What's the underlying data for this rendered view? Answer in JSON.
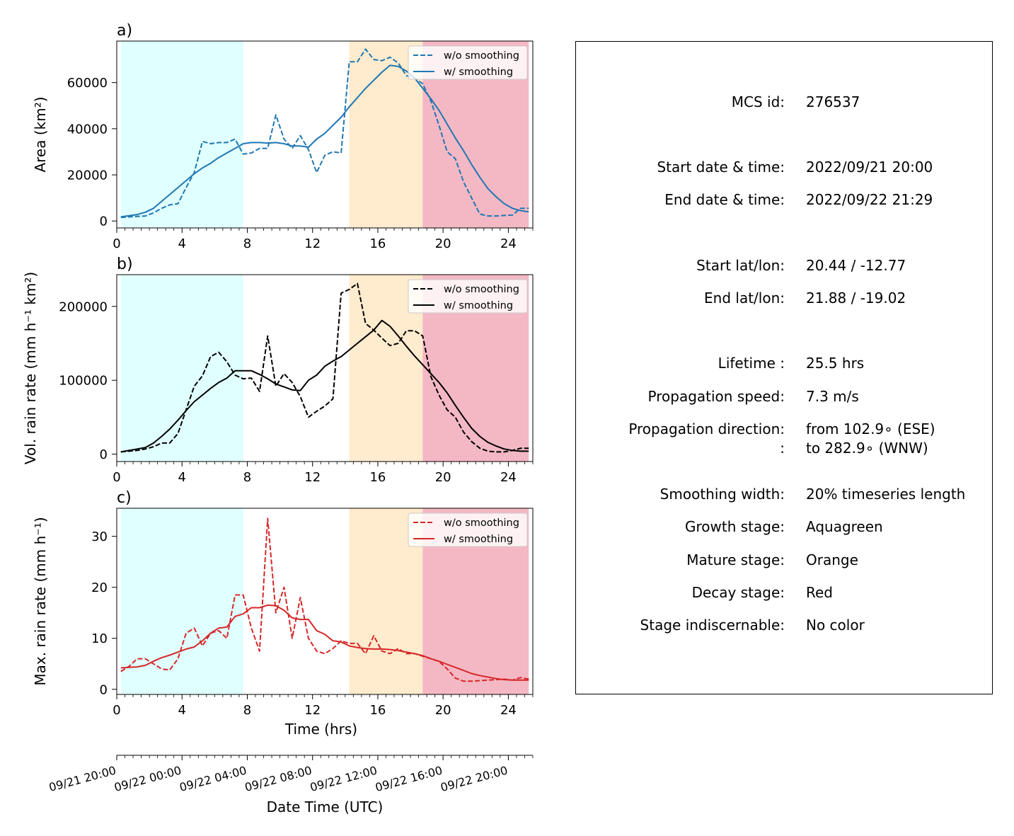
{
  "chart_data": [
    {
      "type": "line",
      "panel_label": "a)",
      "xlabel": "",
      "ylabel": "Area  (km²)",
      "xlim": [
        0,
        25.5
      ],
      "ylim": [
        -3000,
        78000
      ],
      "xticks": [
        0,
        4,
        8,
        12,
        16,
        20,
        24
      ],
      "yticks": [
        0,
        20000,
        40000,
        60000
      ],
      "yticklabels": [
        "0",
        "20000",
        "40000",
        "60000"
      ],
      "stages": [
        {
          "name": "Growth stage",
          "start": 0.25,
          "end": 7.75,
          "color": "#e0ffff"
        },
        {
          "name": "Mature stage",
          "start": 14.25,
          "end": 18.75,
          "color": "#ffebcd"
        },
        {
          "name": "Decay stage",
          "start": 18.75,
          "end": 25.25,
          "color": "#f4b8c4"
        }
      ],
      "legend": "top-right",
      "series": [
        {
          "name": "w/o smoothing",
          "style": "dashed",
          "color": "#1f77b4",
          "x": [
            0.25,
            0.75,
            1.25,
            1.75,
            2.25,
            2.75,
            3.25,
            3.75,
            4.25,
            4.75,
            5.25,
            5.75,
            6.25,
            6.75,
            7.25,
            7.75,
            8.25,
            8.75,
            9.25,
            9.75,
            10.25,
            10.75,
            11.25,
            11.75,
            12.25,
            12.75,
            13.25,
            13.75,
            14.25,
            14.75,
            15.25,
            15.75,
            16.25,
            16.75,
            17.25,
            17.75,
            18.25,
            18.75,
            19.25,
            19.75,
            20.25,
            20.75,
            21.25,
            21.75,
            22.25,
            22.75,
            23.25,
            23.75,
            24.25,
            24.75,
            25.25
          ],
          "y": [
            1500,
            1800,
            2000,
            2200,
            3500,
            5500,
            7000,
            7500,
            14500,
            21000,
            34500,
            33500,
            34000,
            34000,
            35500,
            29000,
            29500,
            31500,
            31500,
            46000,
            35500,
            31500,
            37000,
            31000,
            21000,
            28500,
            30000,
            29500,
            69000,
            69000,
            74500,
            70000,
            69500,
            71000,
            68500,
            63000,
            62000,
            59500,
            52000,
            41500,
            30000,
            27000,
            17000,
            10000,
            3000,
            2200,
            2200,
            2400,
            2600,
            5500,
            5500
          ]
        },
        {
          "name": "w/ smoothing",
          "style": "solid",
          "color": "#1f77b4",
          "x": [
            0.25,
            0.75,
            1.25,
            1.75,
            2.25,
            2.75,
            3.25,
            3.75,
            4.25,
            4.75,
            5.25,
            5.75,
            6.25,
            6.75,
            7.25,
            7.75,
            8.25,
            8.75,
            9.25,
            9.75,
            10.25,
            10.75,
            11.25,
            11.75,
            12.25,
            12.75,
            13.25,
            13.75,
            14.25,
            14.75,
            15.25,
            15.75,
            16.25,
            16.75,
            17.25,
            17.75,
            18.25,
            18.75,
            19.25,
            19.75,
            20.25,
            20.75,
            21.25,
            21.75,
            22.25,
            22.75,
            23.25,
            23.75,
            24.25,
            24.75,
            25.25
          ],
          "y": [
            1800,
            2300,
            2800,
            3800,
            5500,
            8500,
            11500,
            14500,
            17500,
            20500,
            23000,
            25000,
            27500,
            29500,
            31500,
            33500,
            34000,
            34000,
            33800,
            34000,
            33500,
            32500,
            32500,
            32000,
            35500,
            38000,
            41500,
            45000,
            49500,
            53500,
            57500,
            61000,
            64500,
            67500,
            67000,
            65000,
            62000,
            57500,
            53000,
            48000,
            42000,
            36000,
            30500,
            24500,
            19000,
            14000,
            10500,
            7500,
            5500,
            4500,
            4000
          ]
        }
      ]
    },
    {
      "type": "line",
      "panel_label": "b)",
      "xlabel": "",
      "ylabel": "Vol. rain rate (mm h⁻¹ km²)",
      "xlim": [
        0,
        25.5
      ],
      "ylim": [
        -10000,
        243000
      ],
      "xticks": [
        0,
        4,
        8,
        12,
        16,
        20,
        24
      ],
      "yticks": [
        0,
        100000,
        200000
      ],
      "yticklabels": [
        "0",
        "100000",
        "200000"
      ],
      "stages": [
        {
          "name": "Growth stage",
          "start": 0.25,
          "end": 7.75,
          "color": "#e0ffff"
        },
        {
          "name": "Mature stage",
          "start": 14.25,
          "end": 18.75,
          "color": "#ffebcd"
        },
        {
          "name": "Decay stage",
          "start": 18.75,
          "end": 25.25,
          "color": "#f4b8c4"
        }
      ],
      "legend": "top-right",
      "series": [
        {
          "name": "w/o smoothing",
          "style": "dashed",
          "color": "#000000",
          "x": [
            0.25,
            0.75,
            1.25,
            1.75,
            2.25,
            2.75,
            3.25,
            3.75,
            4.25,
            4.75,
            5.25,
            5.75,
            6.25,
            6.75,
            7.25,
            7.75,
            8.25,
            8.75,
            9.25,
            9.75,
            10.25,
            10.75,
            11.25,
            11.75,
            12.25,
            12.75,
            13.25,
            13.75,
            14.25,
            14.75,
            15.25,
            15.75,
            16.25,
            16.75,
            17.25,
            17.75,
            18.25,
            18.75,
            19.25,
            19.75,
            20.25,
            20.75,
            21.25,
            21.75,
            22.25,
            22.75,
            23.25,
            23.75,
            24.25,
            24.75,
            25.25
          ],
          "y": [
            3000,
            4000,
            5000,
            7000,
            10000,
            15000,
            15000,
            28000,
            60000,
            92000,
            106000,
            132000,
            138000,
            125000,
            107000,
            102000,
            103000,
            85000,
            160000,
            92000,
            109000,
            97000,
            78000,
            50000,
            58000,
            65000,
            75000,
            218000,
            223000,
            231000,
            177000,
            168000,
            157000,
            147000,
            150000,
            167000,
            167000,
            160000,
            105000,
            80000,
            60000,
            50000,
            30000,
            17000,
            8000,
            4000,
            3000,
            3000,
            5000,
            8000,
            8000
          ]
        },
        {
          "name": "w/ smoothing",
          "style": "solid",
          "color": "#000000",
          "x": [
            0.25,
            0.75,
            1.25,
            1.75,
            2.25,
            2.75,
            3.25,
            3.75,
            4.25,
            4.75,
            5.25,
            5.75,
            6.25,
            6.75,
            7.25,
            7.75,
            8.25,
            8.75,
            9.25,
            9.75,
            10.25,
            10.75,
            11.25,
            11.75,
            12.25,
            12.75,
            13.25,
            13.75,
            14.25,
            14.75,
            15.25,
            15.75,
            16.25,
            16.75,
            17.25,
            17.75,
            18.25,
            18.75,
            19.25,
            19.75,
            20.25,
            20.75,
            21.25,
            21.75,
            22.25,
            22.75,
            23.25,
            23.75,
            24.25,
            24.75,
            25.25
          ],
          "y": [
            3000,
            5000,
            7000,
            9000,
            15000,
            24000,
            34000,
            46000,
            59000,
            71000,
            80000,
            89000,
            97000,
            103000,
            113000,
            113000,
            113000,
            108000,
            102000,
            95000,
            91000,
            87000,
            86000,
            100000,
            107000,
            119000,
            126000,
            132000,
            141000,
            150000,
            159000,
            168000,
            181000,
            173000,
            160000,
            146000,
            133000,
            121000,
            109000,
            97000,
            83000,
            66000,
            50000,
            35000,
            24000,
            16000,
            11000,
            7000,
            5000,
            4000,
            4000
          ]
        }
      ]
    },
    {
      "type": "line",
      "panel_label": "c)",
      "xlabel": "Time (hrs)",
      "ylabel": "Max. rain rate  (mm h⁻¹)",
      "xlim": [
        0,
        25.5
      ],
      "ylim": [
        -1,
        35.5
      ],
      "xticks": [
        0,
        4,
        8,
        12,
        16,
        20,
        24
      ],
      "yticks": [
        0,
        10,
        20,
        30
      ],
      "yticklabels": [
        "0",
        "10",
        "20",
        "30"
      ],
      "stages": [
        {
          "name": "Growth stage",
          "start": 0.25,
          "end": 7.75,
          "color": "#e0ffff"
        },
        {
          "name": "Mature stage",
          "start": 14.25,
          "end": 18.75,
          "color": "#ffebcd"
        },
        {
          "name": "Decay stage",
          "start": 18.75,
          "end": 25.25,
          "color": "#f4b8c4"
        }
      ],
      "legend": "top-right",
      "series": [
        {
          "name": "w/o smoothing",
          "style": "dashed",
          "color": "#d62728",
          "x": [
            0.25,
            0.75,
            1.25,
            1.75,
            2.25,
            2.75,
            3.25,
            3.75,
            4.25,
            4.75,
            5.25,
            5.75,
            6.25,
            6.75,
            7.25,
            7.75,
            8.25,
            8.75,
            9.25,
            9.75,
            10.25,
            10.75,
            11.25,
            11.75,
            12.25,
            12.75,
            13.25,
            13.75,
            14.25,
            14.75,
            15.25,
            15.75,
            16.25,
            16.75,
            17.25,
            17.75,
            18.25,
            18.75,
            19.25,
            19.75,
            20.25,
            20.75,
            21.25,
            21.75,
            22.25,
            22.75,
            23.25,
            23.75,
            24.25,
            24.75,
            25.25
          ],
          "y": [
            3.5,
            4.5,
            6.0,
            6.0,
            5.0,
            4.0,
            3.8,
            6.0,
            11.0,
            12.0,
            8.5,
            11.0,
            11.5,
            10.0,
            18.5,
            18.5,
            12.0,
            7.5,
            33.5,
            15.0,
            20.0,
            10.0,
            18.0,
            10.0,
            7.5,
            7.0,
            8.0,
            9.5,
            9.0,
            9.0,
            7.0,
            10.5,
            7.5,
            7.0,
            8.0,
            7.0,
            7.0,
            6.5,
            6.0,
            5.5,
            4.0,
            2.2,
            1.6,
            1.6,
            1.7,
            1.8,
            1.9,
            2.0,
            1.8,
            2.3,
            2.0
          ]
        },
        {
          "name": "w/ smoothing",
          "style": "solid",
          "color": "#d62728",
          "x": [
            0.25,
            0.75,
            1.25,
            1.75,
            2.25,
            2.75,
            3.25,
            3.75,
            4.25,
            4.75,
            5.25,
            5.75,
            6.25,
            6.75,
            7.25,
            7.75,
            8.25,
            8.75,
            9.25,
            9.75,
            10.25,
            10.75,
            11.25,
            11.75,
            12.25,
            12.75,
            13.25,
            13.75,
            14.25,
            14.75,
            15.25,
            15.75,
            16.25,
            16.75,
            17.25,
            17.75,
            18.25,
            18.75,
            19.25,
            19.75,
            20.25,
            20.75,
            21.25,
            21.75,
            22.25,
            22.75,
            23.25,
            23.75,
            24.25,
            24.75,
            25.25
          ],
          "y": [
            4.2,
            4.3,
            4.4,
            4.7,
            5.5,
            6.2,
            6.7,
            7.3,
            7.9,
            8.3,
            9.5,
            11.0,
            12.0,
            12.2,
            14.3,
            14.8,
            16.0,
            16.0,
            16.5,
            16.4,
            15.5,
            14.0,
            13.7,
            13.7,
            11.5,
            10.8,
            9.5,
            9.3,
            8.5,
            8.2,
            8.0,
            7.9,
            7.9,
            7.8,
            7.6,
            7.3,
            7.0,
            6.6,
            6.0,
            5.5,
            4.9,
            4.3,
            3.7,
            3.1,
            2.7,
            2.4,
            2.1,
            1.9,
            1.8,
            1.8,
            1.8
          ]
        }
      ]
    }
  ],
  "date_axis": {
    "label": "Date Time (UTC)",
    "ticks": [
      {
        "hour": 0,
        "label": "09/21 20:00"
      },
      {
        "hour": 4,
        "label": "09/22 00:00"
      },
      {
        "hour": 8,
        "label": "09/22 04:00"
      },
      {
        "hour": 12,
        "label": "09/22 08:00"
      },
      {
        "hour": 16,
        "label": "09/22 12:00"
      },
      {
        "hour": 20,
        "label": "09/22 16:00"
      },
      {
        "hour": 24,
        "label": "09/22 20:00"
      }
    ]
  },
  "info": {
    "rows": [
      {
        "label": "MCS id:",
        "value": "276537"
      },
      {
        "label": "Start date & time:",
        "value": "2022/09/21 20:00"
      },
      {
        "label": "End date & time:",
        "value": "2022/09/22 21:29"
      },
      {
        "label": "Start lat/lon:",
        "value": "20.44 / -12.77"
      },
      {
        "label": "End lat/lon:",
        "value": "21.88 / -19.02"
      },
      {
        "label": "Lifetime :",
        "value": "25.5 hrs"
      },
      {
        "label": "Propagation speed:",
        "value": "7.3 m/s"
      },
      {
        "label": "Propagation direction:",
        "value": "from 102.9∘ (ESE)"
      },
      {
        "label": ":",
        "value": "to   282.9∘ (WNW)"
      },
      {
        "label": "Smoothing width:",
        "value": "20% timeseries length"
      },
      {
        "label": "Growth stage:",
        "value": "Aquagreen"
      },
      {
        "label": "Mature stage:",
        "value": "Orange"
      },
      {
        "label": "Decay stage:",
        "value": "Red"
      },
      {
        "label": "Stage indiscernable:",
        "value": "No color"
      }
    ]
  }
}
